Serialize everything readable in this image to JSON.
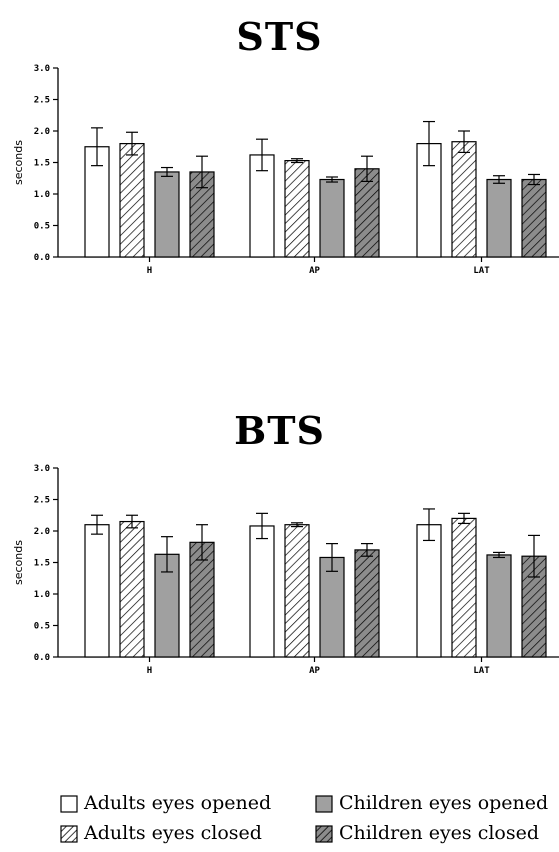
{
  "colors": {
    "adults_open": "#ffffff",
    "adults_closed": "#ffffff",
    "children_open": "#a0a0a0",
    "children_closed": "#8c8c8c",
    "stroke": "#000000"
  },
  "legend": [
    {
      "label": "Adults eyes opened",
      "pattern": "white"
    },
    {
      "label": "Children eyes opened",
      "pattern": "gray"
    },
    {
      "label": "Adults eyes closed",
      "pattern": "white-hatched"
    },
    {
      "label": "Children eyes closed",
      "pattern": "gray-hatched"
    }
  ],
  "chart_data": [
    {
      "type": "bar",
      "title": "STS",
      "xlabel": "",
      "ylabel": "seconds",
      "ylim": [
        0,
        3.0
      ],
      "yticks": [
        "0.0",
        "0.5",
        "1.0",
        "1.5",
        "2.0",
        "2.5",
        "3.0"
      ],
      "categories": [
        "H",
        "AP",
        "LAT"
      ],
      "grid": false,
      "series": [
        {
          "name": "Adults eyes opened",
          "values": [
            1.75,
            1.62,
            1.8
          ],
          "errors": [
            0.3,
            0.25,
            0.35
          ]
        },
        {
          "name": "Adults eyes closed",
          "values": [
            1.8,
            1.53,
            1.83
          ],
          "errors": [
            0.18,
            0.03,
            0.17
          ]
        },
        {
          "name": "Children eyes opened",
          "values": [
            1.35,
            1.23,
            1.23
          ],
          "errors": [
            0.07,
            0.04,
            0.06
          ]
        },
        {
          "name": "Children eyes closed",
          "values": [
            1.35,
            1.4,
            1.23
          ],
          "errors": [
            0.25,
            0.2,
            0.08
          ]
        }
      ]
    },
    {
      "type": "bar",
      "title": "BTS",
      "xlabel": "",
      "ylabel": "seconds",
      "ylim": [
        0,
        3.0
      ],
      "yticks": [
        "0.0",
        "0.5",
        "1.0",
        "1.5",
        "2.0",
        "2.5",
        "3.0"
      ],
      "categories": [
        "H",
        "AP",
        "LAT"
      ],
      "grid": false,
      "series": [
        {
          "name": "Adults eyes opened",
          "values": [
            2.1,
            2.08,
            2.1
          ],
          "errors": [
            0.15,
            0.2,
            0.25
          ]
        },
        {
          "name": "Adults eyes closed",
          "values": [
            2.15,
            2.1,
            2.2
          ],
          "errors": [
            0.1,
            0.03,
            0.08
          ]
        },
        {
          "name": "Children eyes opened",
          "values": [
            1.63,
            1.58,
            1.62
          ],
          "errors": [
            0.28,
            0.22,
            0.04
          ]
        },
        {
          "name": "Children eyes closed",
          "values": [
            1.82,
            1.7,
            1.6
          ],
          "errors": [
            0.28,
            0.1,
            0.33
          ]
        }
      ]
    }
  ]
}
